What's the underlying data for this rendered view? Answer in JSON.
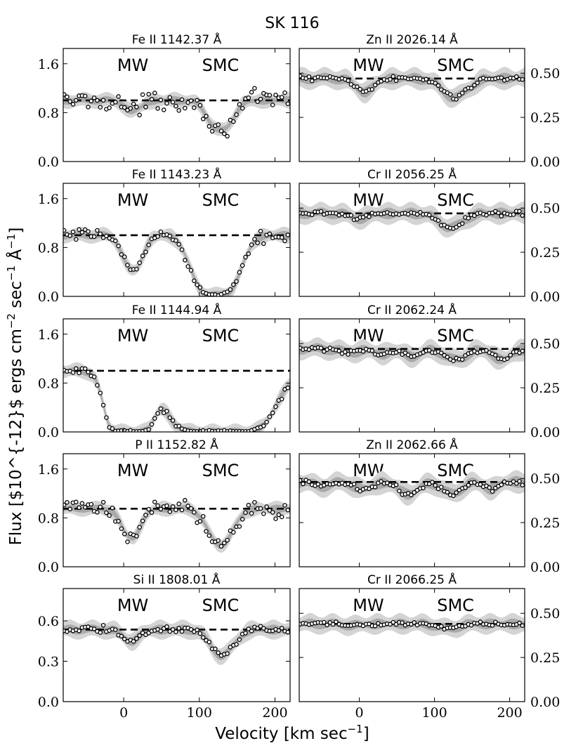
{
  "figure": {
    "title": "SK 116",
    "xlabel": "Velocity [km sec$^{-1}$]",
    "ylabel": "Flux [$10^{-12}$ ergs cm$^{-2}$ sec$^{-1}$ Å$^{-1}$]",
    "region_labels": [
      "MW",
      "SMC"
    ]
  },
  "chart_data": [
    {
      "type": "scatter",
      "title": "Fe II 1142.37 Å",
      "column": "left",
      "row": 0,
      "xlim": [
        -80,
        220
      ],
      "ylim": [
        0,
        1.85
      ],
      "xticks": [
        0,
        100,
        200
      ],
      "xtick_labels": [
        "0",
        "100",
        "200"
      ],
      "yticks": [
        0,
        0.8,
        1.6
      ],
      "ytick_labels": [
        "0.0",
        "0.8",
        "1.6"
      ],
      "continuum": 1.0,
      "noise": 0.12,
      "components": [
        {
          "v": 12,
          "depth": 0.18,
          "width": 10
        },
        {
          "v": 128,
          "depth": 0.5,
          "width": 14
        }
      ]
    },
    {
      "type": "scatter",
      "title": "Fe II 1143.23 Å",
      "column": "left",
      "row": 1,
      "xlim": [
        -80,
        220
      ],
      "ylim": [
        0,
        1.85
      ],
      "xticks": [
        0,
        100,
        200
      ],
      "xtick_labels": [
        "0",
        "100",
        "200"
      ],
      "yticks": [
        0,
        0.8,
        1.6
      ],
      "ytick_labels": [
        "0.0",
        "0.8",
        "1.6"
      ],
      "continuum": 1.0,
      "noise": 0.07,
      "components": [
        {
          "v": 12,
          "depth": 0.58,
          "width": 11
        },
        {
          "v": 122,
          "depth": 0.98,
          "width": 19
        }
      ]
    },
    {
      "type": "scatter",
      "title": "Fe II 1144.94 Å",
      "column": "left",
      "row": 2,
      "xlim": [
        -80,
        220
      ],
      "ylim": [
        0,
        1.85
      ],
      "xticks": [
        0,
        100,
        200
      ],
      "xtick_labels": [
        "0",
        "100",
        "200"
      ],
      "yticks": [
        0,
        0.8,
        1.6
      ],
      "ytick_labels": [
        "0.0",
        "0.8",
        "1.6"
      ],
      "continuum": 1.0,
      "noise": 0.06,
      "components": [
        {
          "v": 8,
          "depth": 1.0,
          "width": 16
        },
        {
          "v": 127,
          "depth": 1.0,
          "width": 34
        }
      ]
    },
    {
      "type": "scatter",
      "title": "P II 1152.82 Å",
      "column": "left",
      "row": 3,
      "xlim": [
        -80,
        220
      ],
      "ylim": [
        0,
        1.85
      ],
      "xticks": [
        0,
        100,
        200
      ],
      "xtick_labels": [
        "0",
        "100",
        "200"
      ],
      "yticks": [
        0,
        0.8,
        1.6
      ],
      "ytick_labels": [
        "0.0",
        "0.8",
        "1.6"
      ],
      "continuum": 0.95,
      "noise": 0.12,
      "components": [
        {
          "v": 10,
          "depth": 0.5,
          "width": 11
        },
        {
          "v": 128,
          "depth": 0.62,
          "width": 14
        }
      ]
    },
    {
      "type": "scatter",
      "title": "Si II 1808.01 Å",
      "column": "left",
      "row": 4,
      "xlim": [
        -80,
        220
      ],
      "ylim": [
        0,
        0.84
      ],
      "xticks": [
        0,
        100,
        200
      ],
      "xtick_labels": [
        "0",
        "100",
        "200"
      ],
      "yticks": [
        0,
        0.3,
        0.6
      ],
      "ytick_labels": [
        "0.0",
        "0.3",
        "0.6"
      ],
      "continuum": 0.535,
      "noise": 0.02,
      "components": [
        {
          "v": 10,
          "depth": 0.16,
          "width": 10
        },
        {
          "v": 130,
          "depth": 0.36,
          "width": 14
        }
      ]
    },
    {
      "type": "scatter",
      "title": "Zn II 2026.14 Å",
      "column": "right",
      "row": 0,
      "xlim": [
        -80,
        220
      ],
      "ylim": [
        0,
        0.64
      ],
      "xticks": [
        0,
        100,
        200
      ],
      "xtick_labels": [
        "0",
        "100",
        "200"
      ],
      "yticks": [
        0,
        0.25,
        0.5
      ],
      "ytick_labels": [
        "0.00",
        "0.25",
        "0.50"
      ],
      "continuum": 0.47,
      "noise": 0.012,
      "components": [
        {
          "v": 7,
          "depth": 0.16,
          "width": 12
        },
        {
          "v": 127,
          "depth": 0.23,
          "width": 16
        }
      ]
    },
    {
      "type": "scatter",
      "title": "Cr II 2056.25 Å",
      "column": "right",
      "row": 1,
      "xlim": [
        -80,
        220
      ],
      "ylim": [
        0,
        0.64
      ],
      "xticks": [
        0,
        100,
        200
      ],
      "xtick_labels": [
        "0",
        "100",
        "200"
      ],
      "yticks": [
        0,
        0.25,
        0.5
      ],
      "ytick_labels": [
        "0.00",
        "0.25",
        "0.50"
      ],
      "continuum": 0.47,
      "noise": 0.01,
      "components": [
        {
          "v": 0,
          "depth": 0.06,
          "width": 12
        },
        {
          "v": 122,
          "depth": 0.17,
          "width": 15
        }
      ]
    },
    {
      "type": "scatter",
      "title": "Cr II 2062.24 Å",
      "column": "right",
      "row": 2,
      "xlim": [
        -80,
        220
      ],
      "ylim": [
        0,
        0.64
      ],
      "xticks": [
        0,
        100,
        200
      ],
      "xtick_labels": [
        "0",
        "100",
        "200"
      ],
      "yticks": [
        0,
        0.25,
        0.5
      ],
      "ytick_labels": [
        "0.00",
        "0.25",
        "0.50"
      ],
      "continuum": 0.47,
      "noise": 0.01,
      "components": [
        {
          "v": -12,
          "depth": 0.04,
          "width": 14
        },
        {
          "v": 30,
          "depth": 0.06,
          "width": 10
        },
        {
          "v": 70,
          "depth": 0.09,
          "width": 12
        },
        {
          "v": 128,
          "depth": 0.13,
          "width": 14
        },
        {
          "v": 190,
          "depth": 0.13,
          "width": 12
        }
      ]
    },
    {
      "type": "scatter",
      "title": "Zn II 2062.66 Å",
      "column": "right",
      "row": 3,
      "xlim": [
        -80,
        220
      ],
      "ylim": [
        0,
        0.64
      ],
      "xticks": [
        0,
        100,
        200
      ],
      "xtick_labels": [
        "0",
        "100",
        "200"
      ],
      "yticks": [
        0,
        0.25,
        0.5
      ],
      "ytick_labels": [
        "0.00",
        "0.25",
        "0.50"
      ],
      "continuum": 0.48,
      "noise": 0.012,
      "components": [
        {
          "v": -50,
          "depth": 0.05,
          "width": 12
        },
        {
          "v": 5,
          "depth": 0.09,
          "width": 11
        },
        {
          "v": 65,
          "depth": 0.14,
          "width": 13
        },
        {
          "v": 123,
          "depth": 0.14,
          "width": 12
        },
        {
          "v": 175,
          "depth": 0.08,
          "width": 10
        }
      ]
    },
    {
      "type": "scatter",
      "title": "Cr II 2066.25 Å",
      "column": "right",
      "row": 4,
      "xlim": [
        -80,
        220
      ],
      "ylim": [
        0,
        0.64
      ],
      "xticks": [
        0,
        100,
        200
      ],
      "xtick_labels": [
        "0",
        "100",
        "200"
      ],
      "yticks": [
        0,
        0.25,
        0.5
      ],
      "ytick_labels": [
        "0.00",
        "0.25",
        "0.50"
      ],
      "continuum": 0.44,
      "noise": 0.01,
      "components": [
        {
          "v": -8,
          "depth": 0.02,
          "width": 12
        },
        {
          "v": 118,
          "depth": 0.06,
          "width": 14
        }
      ]
    }
  ]
}
